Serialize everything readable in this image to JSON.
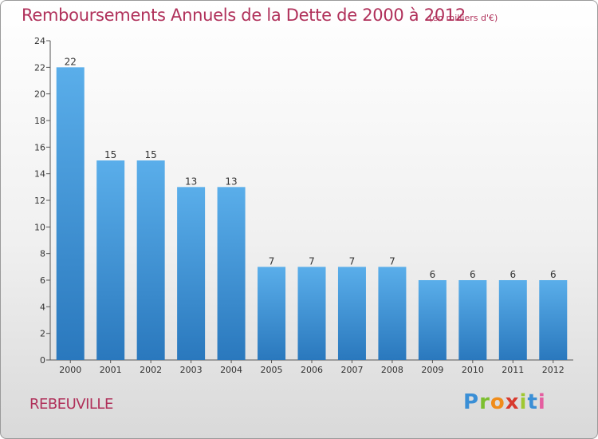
{
  "title": "Remboursements Annuels de la Dette de 2000 à 2012",
  "unit": "(en milliers d'€)",
  "commune": "REBEUVILLE",
  "logo": "Proxiti",
  "colors": {
    "bar": "#4a9fe0",
    "bar_dark": "#2f7fc4",
    "text_accent": "#b0305a"
  },
  "chart_data": {
    "type": "bar",
    "title": "Remboursements Annuels de la Dette de 2000 à 2012",
    "subtitle": "(en milliers d'€)",
    "xlabel": "",
    "ylabel": "",
    "ylim": [
      0,
      24
    ],
    "yticks": [
      0,
      2,
      4,
      6,
      8,
      10,
      12,
      14,
      16,
      18,
      20,
      22,
      24
    ],
    "categories": [
      "2000",
      "2001",
      "2002",
      "2003",
      "2004",
      "2005",
      "2006",
      "2007",
      "2008",
      "2009",
      "2010",
      "2011",
      "2012"
    ],
    "values": [
      22,
      15,
      15,
      13,
      13,
      7,
      7,
      7,
      7,
      6,
      6,
      6,
      6
    ],
    "grid": false,
    "legend": "none"
  }
}
